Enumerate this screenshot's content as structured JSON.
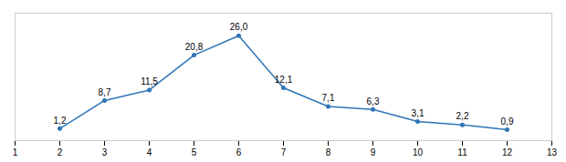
{
  "chart_data": {
    "type": "line",
    "x": [
      2,
      3,
      4,
      5,
      6,
      7,
      8,
      9,
      10,
      11,
      12
    ],
    "values": [
      1.2,
      8.7,
      11.5,
      20.8,
      26.0,
      12.1,
      7.1,
      6.3,
      3.1,
      2.2,
      0.9
    ],
    "value_labels": [
      "1,2",
      "8,7",
      "11,5",
      "20,8",
      "26,0",
      "12,1",
      "7,1",
      "6,3",
      "3,1",
      "2,2",
      "0,9"
    ],
    "data_labels": true,
    "color": "#2e75b6",
    "marker": "circle",
    "xlim": [
      1,
      13
    ],
    "ylim": [
      -2,
      32
    ],
    "xticks": [
      1,
      2,
      3,
      4,
      5,
      6,
      7,
      8,
      9,
      10,
      11,
      12,
      13
    ],
    "tick_labels": "x",
    "grid": false
  }
}
